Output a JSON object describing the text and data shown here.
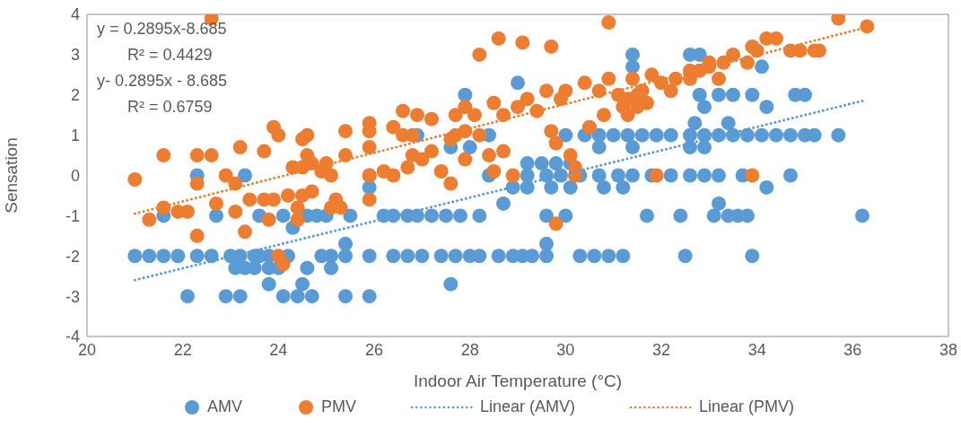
{
  "chart_data": {
    "type": "scatter",
    "xlabel": "Indoor Air Temperature (°C)",
    "ylabel": "Sensation",
    "xlim": [
      20,
      38
    ],
    "xticks": [
      20,
      22,
      24,
      26,
      28,
      30,
      32,
      34,
      36,
      38
    ],
    "ylim": [
      -4,
      4
    ],
    "yticks": [
      -4,
      -3,
      -2,
      -1,
      0,
      1,
      2,
      3,
      4
    ],
    "grid": false,
    "legend": "bottom",
    "marker": "circle",
    "annotations": [
      "y = 0.2895x-8.685",
      "R² = 0.4429",
      "y- 0.2895x - 8.685",
      "R² = 0.6759"
    ],
    "series": [
      {
        "name": "AMV",
        "color": "#5b9bd5",
        "x": [
          21.0,
          21.3,
          21.6,
          21.9,
          22.3,
          22.6,
          23.0,
          23.2,
          23.5,
          23.6,
          23.8,
          24.2,
          24.9,
          25.1,
          25.4,
          25.9,
          22.1,
          22.9,
          23.2,
          24.1,
          24.4,
          24.7,
          25.4,
          25.9,
          23.1,
          23.3,
          23.5,
          23.8,
          24.0,
          24.6,
          25.1,
          23.8,
          24.5,
          27.6,
          21.6,
          22.7,
          23.6,
          23.9,
          24.1,
          24.4,
          24.6,
          24.8,
          25.0,
          25.5,
          26.2,
          26.4,
          26.7,
          26.9,
          27.2,
          27.5,
          27.8,
          28.2,
          29.6,
          30.0,
          31.7,
          32.4,
          33.1,
          33.4,
          33.6,
          33.8,
          36.2,
          24.3,
          25.4,
          29.6,
          28.7,
          33.2,
          25.9,
          28.9,
          29.2,
          29.7,
          30.1,
          30.8,
          31.2,
          34.2,
          22.3,
          23.3,
          25.9,
          28.4,
          29.2,
          29.6,
          29.9,
          30.3,
          30.7,
          31.1,
          31.4,
          31.8,
          32.2,
          32.6,
          32.9,
          33.2,
          33.7,
          34.7,
          29.2,
          29.5,
          29.8,
          30.1,
          27.6,
          28.0,
          30.7,
          31.4,
          32.6,
          32.9,
          26.9,
          27.6,
          28.4,
          30.0,
          30.4,
          30.7,
          31.0,
          31.3,
          31.6,
          31.9,
          32.2,
          32.6,
          32.9,
          33.2,
          33.5,
          33.8,
          34.1,
          34.4,
          34.7,
          35.0,
          35.2,
          35.7,
          32.7,
          33.4,
          32.9,
          34.2,
          27.9,
          32.8,
          33.2,
          33.5,
          33.9,
          34.8,
          35.0,
          29.0,
          31.4,
          34.1,
          31.4,
          32.6,
          32.8,
          26.4,
          26.7,
          27.0,
          27.4,
          27.7,
          28.0,
          28.2,
          28.6,
          28.9,
          29.1,
          29.3,
          29.6,
          30.3,
          30.6,
          30.9,
          31.2,
          32.5,
          33.9
        ],
        "values": [
          -2,
          -2,
          -2,
          -2,
          -2,
          -2,
          -2,
          -2,
          -2,
          -2,
          -2,
          -2,
          -2,
          -2,
          -2,
          -2,
          -3,
          -3,
          -3,
          -3,
          -3,
          -3,
          -3,
          -3,
          -2.3,
          -2.3,
          -2.3,
          -2.3,
          -2.3,
          -2.3,
          -2.3,
          -2.7,
          -2.7,
          -2.7,
          -1,
          -1,
          -1,
          null,
          -1,
          null,
          -1,
          -1,
          -1,
          -1,
          -1,
          -1,
          -1,
          -1,
          -1,
          -1,
          -1,
          -1,
          -1,
          -1,
          -1,
          -1,
          -1,
          -1,
          -1,
          -1,
          -1,
          -1.3,
          -1.7,
          -1.7,
          -0.7,
          -0.7,
          -0.3,
          -0.3,
          -0.3,
          -0.3,
          -0.3,
          -0.3,
          -0.3,
          -0.3,
          0,
          0,
          0,
          0,
          0,
          0,
          0,
          0,
          0,
          0,
          0,
          0,
          0,
          0,
          0,
          0,
          0,
          0,
          0.3,
          0.3,
          0.3,
          0.3,
          0.7,
          0.7,
          0.7,
          0.7,
          0.7,
          0.7,
          1,
          null,
          1,
          1,
          1,
          1,
          1,
          1,
          1,
          1,
          1,
          1,
          1,
          1,
          1,
          1,
          1,
          1,
          1,
          1,
          1,
          1,
          1.3,
          1.3,
          1.7,
          1.7,
          2,
          2,
          2,
          2,
          2,
          2,
          2,
          2.3,
          2.7,
          2.7,
          3,
          3,
          3,
          -2,
          -2,
          -2,
          -2,
          -2,
          -2,
          -2,
          -2,
          -2,
          -2,
          -2,
          -2,
          -2,
          -2,
          -2,
          -2,
          -2,
          -2
        ]
      },
      {
        "name": "PMV",
        "color": "#ed7d31",
        "x": [
          21.0,
          21.6,
          21.3,
          21.6,
          21.9,
          22.1,
          22.3,
          22.6,
          22.3,
          22.3,
          22.6,
          22.7,
          23.2,
          22.9,
          23.1,
          23.1,
          23.3,
          23.7,
          23.4,
          23.7,
          23.9,
          23.9,
          24.0,
          24.0,
          24.1,
          23.8,
          24.2,
          24.4,
          24.5,
          24.3,
          24.5,
          24.6,
          24.7,
          24.9,
          25.0,
          25.1,
          24.6,
          24.5,
          24.4,
          24.7,
          25.2,
          25.3,
          25.1,
          25.4,
          25.4,
          25.9,
          25.9,
          25.9,
          25.9,
          25.9,
          30.9,
          28.6,
          29.1,
          29.7,
          28.2,
          26.6,
          26.4,
          26.6,
          26.8,
          26.9,
          27.2,
          26.2,
          26.4,
          26.7,
          26.8,
          27.0,
          27.2,
          27.4,
          27.6,
          27.6,
          27.7,
          27.9,
          28.2,
          27.7,
          27.9,
          28.1,
          27.9,
          28.4,
          28.7,
          28.5,
          28.9,
          28.5,
          28.7,
          29.0,
          29.2,
          29.4,
          29.6,
          29.7,
          29.8,
          29.9,
          30.0,
          30.1,
          30.2,
          29.8,
          30.2,
          30.4,
          30.7,
          30.9,
          31.1,
          31.2,
          31.4,
          31.6,
          31.8,
          30.5,
          30.8,
          35.7,
          36.3,
          34.7,
          34.9,
          35.2,
          35.3,
          34.2,
          34.4,
          33.9,
          34.0,
          33.8,
          33.5,
          33.3,
          33.0,
          32.8,
          32.6,
          32.3,
          32.0,
          31.5,
          31.3,
          33.2,
          31.9,
          33.9,
          31.3,
          31.5,
          31.7,
          32.2,
          32.6,
          33.0
        ],
        "values": [
          -0.1,
          0.5,
          -1.1,
          -0.8,
          -0.9,
          -0.9,
          0.5,
          0.5,
          -0.2,
          -1.5,
          3.9,
          -0.7,
          0.7,
          0.0,
          -0.2,
          -0.9,
          -1.4,
          0.6,
          -0.6,
          -0.6,
          -0.6,
          1.2,
          1.0,
          -2.0,
          -2.2,
          -1.1,
          -0.5,
          -0.8,
          -0.5,
          0.2,
          0.2,
          0.5,
          0.3,
          0.1,
          0.3,
          0.0,
          1.0,
          0.9,
          -1.1,
          -0.4,
          -0.6,
          -0.8,
          -0.8,
          1.1,
          0.5,
          1.3,
          1.1,
          0.7,
          -0.6,
          0.0,
          3.8,
          3.4,
          3.3,
          3.2,
          3.0,
          1.6,
          1.2,
          1.0,
          1.0,
          1.5,
          1.4,
          0.1,
          0.0,
          0.2,
          0.5,
          0.4,
          0.6,
          0.1,
          -0.2,
          0.9,
          1.0,
          1.1,
          1.0,
          1.5,
          1.7,
          1.5,
          0.4,
          0.5,
          0.6,
          0.1,
          0.0,
          1.8,
          1.5,
          1.7,
          1.9,
          1.6,
          2.1,
          1.1,
          0.8,
          1.9,
          2.1,
          0.5,
          0.2,
          -1.2,
          0.0,
          2.3,
          2.1,
          2.4,
          2.0,
          1.7,
          2.4,
          2.1,
          2.5,
          1.2,
          1.5,
          3.9,
          3.7,
          3.1,
          3.1,
          3.1,
          3.1,
          3.4,
          3.4,
          3.2,
          3.1,
          2.8,
          3.0,
          2.8,
          2.7,
          2.6,
          2.4,
          2.4,
          2.3,
          2.0,
          1.9,
          2.4,
          0.0,
          0.0,
          1.5,
          1.7,
          1.8,
          2.1,
          2.6,
          2.8
        ]
      },
      {
        "name": "Linear (AMV)",
        "type": "line",
        "color": "#5b9bd5",
        "line_style": "dotted",
        "marker": "none",
        "x": [
          21.0,
          36.2
        ],
        "values": [
          -2.6,
          1.85
        ]
      },
      {
        "name": "Linear (PMV)",
        "type": "line",
        "color": "#ed7d31",
        "line_style": "dotted",
        "marker": "none",
        "x": [
          21.0,
          36.3
        ],
        "values": [
          -0.95,
          3.68
        ]
      }
    ]
  }
}
